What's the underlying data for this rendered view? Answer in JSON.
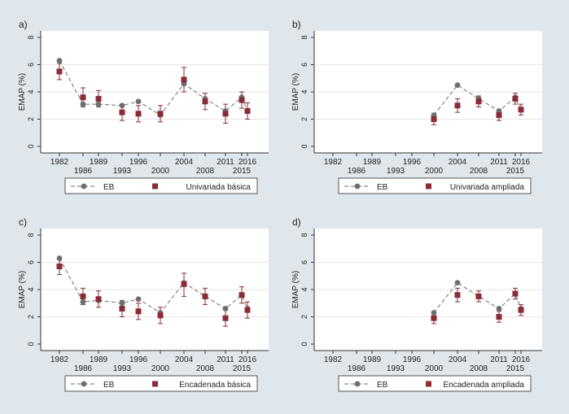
{
  "colors": {
    "background": "#dfe6ec",
    "plot_bg": "#ffffff",
    "eb_color": "#6e6e6e",
    "model_color": "#8b2b33",
    "axis_color": "#333333"
  },
  "chart_data": [
    {
      "type": "scatter",
      "panel_label": "a)",
      "ylabel": "EMAP (%)",
      "ylim": [
        0,
        8
      ],
      "yticks": [
        0,
        2,
        4,
        6,
        8
      ],
      "xticks": [
        "1982",
        "1986",
        "1989",
        "1993",
        "1996",
        "2000",
        "2004",
        "2008",
        "2011",
        "2016",
        "2015"
      ],
      "x_order": [
        "1982",
        "1986",
        "1989",
        "1993",
        "1996",
        "2000",
        "2004",
        "2008",
        "2011",
        "2015",
        "2016"
      ],
      "eb_values": [
        6.3,
        3.1,
        3.1,
        3.0,
        3.3,
        2.3,
        4.6,
        3.5,
        2.6,
        3.6,
        2.6
      ],
      "model_values": [
        5.5,
        3.6,
        3.5,
        2.5,
        2.4,
        2.4,
        4.9,
        3.3,
        2.4,
        3.4,
        2.6
      ],
      "model_lower": [
        4.9,
        2.9,
        2.9,
        1.9,
        1.8,
        1.8,
        4.0,
        2.7,
        1.7,
        2.8,
        2.0
      ],
      "model_upper": [
        6.1,
        4.3,
        4.1,
        3.1,
        3.0,
        3.0,
        5.8,
        3.9,
        3.1,
        4.0,
        3.2
      ],
      "legend": [
        "EB",
        "Univariada básica"
      ]
    },
    {
      "type": "scatter",
      "panel_label": "b)",
      "ylabel": "EMAP (%)",
      "ylim": [
        0,
        8
      ],
      "yticks": [
        0,
        2,
        4,
        6,
        8
      ],
      "xticks": [
        "1982",
        "1986",
        "1989",
        "1993",
        "1996",
        "2000",
        "2004",
        "2008",
        "2011",
        "2016",
        "2015"
      ],
      "x_order": [
        "2000",
        "2004",
        "2008",
        "2011",
        "2015",
        "2016"
      ],
      "eb_values": [
        2.3,
        4.5,
        3.5,
        2.6,
        3.6,
        2.7
      ],
      "model_values": [
        2.0,
        3.0,
        3.3,
        2.3,
        3.5,
        2.7
      ],
      "model_lower": [
        1.6,
        2.5,
        2.9,
        1.9,
        3.1,
        2.3
      ],
      "model_upper": [
        2.4,
        3.5,
        3.7,
        2.7,
        3.9,
        3.1
      ],
      "legend": [
        "EB",
        "Univariada ampliada"
      ]
    },
    {
      "type": "scatter",
      "panel_label": "c)",
      "ylabel": "EMAP (%)",
      "ylim": [
        0,
        8
      ],
      "yticks": [
        0,
        2,
        4,
        6,
        8
      ],
      "xticks": [
        "1982",
        "1986",
        "1989",
        "1993",
        "1996",
        "2000",
        "2004",
        "2008",
        "2011",
        "2016",
        "2015"
      ],
      "x_order": [
        "1982",
        "1986",
        "1989",
        "1993",
        "1996",
        "2000",
        "2004",
        "2008",
        "2011",
        "2015",
        "2016"
      ],
      "eb_values": [
        6.3,
        3.1,
        3.2,
        3.0,
        3.3,
        2.3,
        4.5,
        3.5,
        2.6,
        3.6,
        2.6
      ],
      "model_values": [
        5.7,
        3.5,
        3.3,
        2.6,
        2.4,
        2.1,
        4.4,
        3.5,
        1.9,
        3.6,
        2.5
      ],
      "model_lower": [
        5.1,
        2.9,
        2.7,
        2.0,
        1.8,
        1.5,
        3.5,
        2.9,
        1.3,
        3.0,
        1.9
      ],
      "model_upper": [
        6.3,
        4.1,
        3.9,
        3.2,
        3.0,
        2.7,
        5.2,
        4.1,
        2.5,
        4.2,
        3.1
      ],
      "legend": [
        "EB",
        "Encadenada básica"
      ]
    },
    {
      "type": "scatter",
      "panel_label": "d)",
      "ylabel": "EMAP (%)",
      "ylim": [
        0,
        8
      ],
      "yticks": [
        0,
        2,
        4,
        6,
        8
      ],
      "xticks": [
        "1982",
        "1986",
        "1989",
        "1993",
        "1996",
        "2000",
        "2004",
        "2008",
        "2011",
        "2016",
        "2015"
      ],
      "x_order": [
        "2000",
        "2004",
        "2008",
        "2011",
        "2015",
        "2016"
      ],
      "eb_values": [
        2.3,
        4.5,
        3.5,
        2.6,
        3.7,
        2.6
      ],
      "model_values": [
        1.9,
        3.6,
        3.5,
        2.0,
        3.7,
        2.5
      ],
      "model_lower": [
        1.5,
        3.1,
        3.1,
        1.6,
        3.3,
        2.1
      ],
      "model_upper": [
        2.3,
        4.1,
        3.9,
        2.4,
        4.1,
        2.9
      ],
      "legend": [
        "EB",
        "Encadenada ampliada"
      ]
    }
  ]
}
